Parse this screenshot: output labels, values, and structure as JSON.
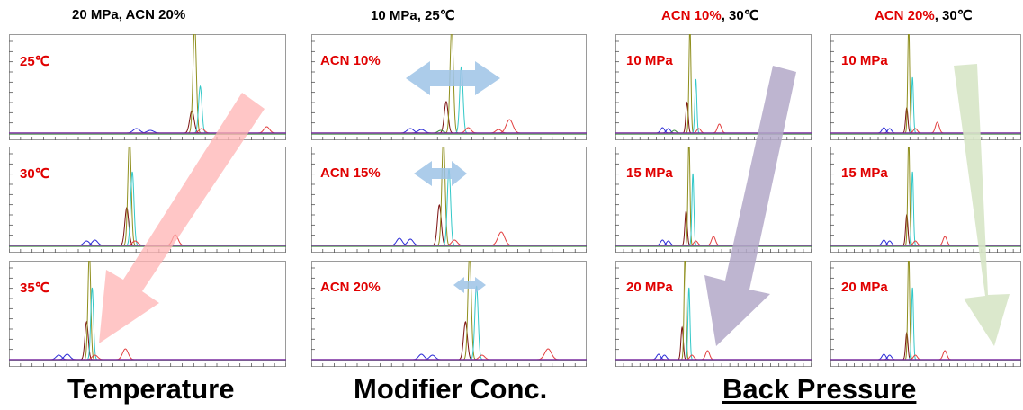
{
  "headers": [
    {
      "plain": "20 MPa, ACN 20%"
    },
    {
      "plain": "10 MPa, 25℃"
    },
    {
      "red": "ACN 10%",
      "rest": ", 30℃"
    },
    {
      "red": "ACN 20%",
      "rest": ", 30℃"
    }
  ],
  "footers": [
    "Temperature",
    "Modifier Conc.",
    "Back Pressure"
  ],
  "colors": {
    "label_red": "#e00000",
    "blue": "#2b2bd6",
    "dark_red": "#7b1010",
    "olive": "#8f8f1d",
    "cyan": "#33c8c8",
    "red": "#e24040",
    "green": "#3a8a3a",
    "baseline": "#7a2aa0",
    "arrow_temperature": "#ffb3b3",
    "arrow_modifier": "#9dc3e6",
    "arrow_pressure_10": "#b3a8c8",
    "arrow_pressure_20": "#d7e6c7"
  },
  "chart_data": [
    {
      "type": "line",
      "group": "Temperature",
      "label": "25℃",
      "peaks": [
        {
          "series": "blue",
          "x": 0.46,
          "h": 0.05,
          "w": 0.012
        },
        {
          "series": "blue",
          "x": 0.51,
          "h": 0.03,
          "w": 0.012
        },
        {
          "series": "dark_red",
          "x": 0.66,
          "h": 0.25,
          "w": 0.008
        },
        {
          "series": "olive",
          "x": 0.67,
          "h": 1.2,
          "w": 0.006
        },
        {
          "series": "cyan",
          "x": 0.69,
          "h": 0.52,
          "w": 0.006
        },
        {
          "series": "red",
          "x": 0.695,
          "h": 0.05,
          "w": 0.01
        },
        {
          "series": "red",
          "x": 0.93,
          "h": 0.07,
          "w": 0.01
        }
      ]
    },
    {
      "type": "line",
      "group": "Temperature",
      "label": "30℃",
      "peaks": [
        {
          "series": "blue",
          "x": 0.28,
          "h": 0.05,
          "w": 0.01
        },
        {
          "series": "blue",
          "x": 0.31,
          "h": 0.06,
          "w": 0.01
        },
        {
          "series": "dark_red",
          "x": 0.425,
          "h": 0.42,
          "w": 0.007
        },
        {
          "series": "olive",
          "x": 0.435,
          "h": 1.2,
          "w": 0.006
        },
        {
          "series": "cyan",
          "x": 0.445,
          "h": 0.82,
          "w": 0.006
        },
        {
          "series": "red",
          "x": 0.455,
          "h": 0.05,
          "w": 0.01
        },
        {
          "series": "red",
          "x": 0.6,
          "h": 0.12,
          "w": 0.01
        }
      ]
    },
    {
      "type": "line",
      "group": "Temperature",
      "label": "35℃",
      "peaks": [
        {
          "series": "blue",
          "x": 0.18,
          "h": 0.05,
          "w": 0.01
        },
        {
          "series": "blue",
          "x": 0.21,
          "h": 0.06,
          "w": 0.01
        },
        {
          "series": "dark_red",
          "x": 0.28,
          "h": 0.42,
          "w": 0.006
        },
        {
          "series": "olive",
          "x": 0.29,
          "h": 1.2,
          "w": 0.005
        },
        {
          "series": "cyan",
          "x": 0.3,
          "h": 0.8,
          "w": 0.005
        },
        {
          "series": "red",
          "x": 0.31,
          "h": 0.05,
          "w": 0.01
        },
        {
          "series": "red",
          "x": 0.42,
          "h": 0.12,
          "w": 0.01
        }
      ]
    },
    {
      "type": "line",
      "group": "Modifier Conc.",
      "label": "ACN 10%",
      "peaks": [
        {
          "series": "blue",
          "x": 0.36,
          "h": 0.05,
          "w": 0.012
        },
        {
          "series": "blue",
          "x": 0.4,
          "h": 0.04,
          "w": 0.012
        },
        {
          "series": "dark_red",
          "x": 0.49,
          "h": 0.35,
          "w": 0.007
        },
        {
          "series": "olive",
          "x": 0.51,
          "h": 1.2,
          "w": 0.006
        },
        {
          "series": "cyan",
          "x": 0.545,
          "h": 0.74,
          "w": 0.006
        },
        {
          "series": "red",
          "x": 0.57,
          "h": 0.06,
          "w": 0.01
        },
        {
          "series": "red",
          "x": 0.72,
          "h": 0.15,
          "w": 0.012
        },
        {
          "series": "red",
          "x": 0.68,
          "h": 0.04,
          "w": 0.01
        },
        {
          "series": "green",
          "x": 0.47,
          "h": 0.03,
          "w": 0.01
        }
      ]
    },
    {
      "type": "line",
      "group": "Modifier Conc.",
      "label": "ACN 15%",
      "peaks": [
        {
          "series": "blue",
          "x": 0.32,
          "h": 0.08,
          "w": 0.01
        },
        {
          "series": "blue",
          "x": 0.36,
          "h": 0.07,
          "w": 0.01
        },
        {
          "series": "dark_red",
          "x": 0.465,
          "h": 0.45,
          "w": 0.007
        },
        {
          "series": "olive",
          "x": 0.48,
          "h": 1.2,
          "w": 0.006
        },
        {
          "series": "cyan",
          "x": 0.5,
          "h": 0.85,
          "w": 0.006
        },
        {
          "series": "red",
          "x": 0.52,
          "h": 0.06,
          "w": 0.01
        },
        {
          "series": "red",
          "x": 0.69,
          "h": 0.15,
          "w": 0.012
        }
      ]
    },
    {
      "type": "line",
      "group": "Modifier Conc.",
      "label": "ACN 20%",
      "peaks": [
        {
          "series": "blue",
          "x": 0.4,
          "h": 0.06,
          "w": 0.01
        },
        {
          "series": "blue",
          "x": 0.44,
          "h": 0.05,
          "w": 0.01
        },
        {
          "series": "dark_red",
          "x": 0.56,
          "h": 0.42,
          "w": 0.007
        },
        {
          "series": "olive",
          "x": 0.575,
          "h": 1.2,
          "w": 0.006
        },
        {
          "series": "cyan",
          "x": 0.6,
          "h": 0.82,
          "w": 0.006
        },
        {
          "series": "red",
          "x": 0.62,
          "h": 0.05,
          "w": 0.01
        },
        {
          "series": "red",
          "x": 0.86,
          "h": 0.12,
          "w": 0.012
        }
      ]
    },
    {
      "type": "line",
      "group": "Back Pressure",
      "label": "10 MPa",
      "peaks": [
        {
          "series": "blue",
          "x": 0.24,
          "h": 0.06,
          "w": 0.01
        },
        {
          "series": "blue",
          "x": 0.27,
          "h": 0.05,
          "w": 0.01
        },
        {
          "series": "dark_red",
          "x": 0.365,
          "h": 0.34,
          "w": 0.006
        },
        {
          "series": "olive",
          "x": 0.38,
          "h": 1.2,
          "w": 0.005
        },
        {
          "series": "cyan",
          "x": 0.41,
          "h": 0.6,
          "w": 0.005
        },
        {
          "series": "red",
          "x": 0.425,
          "h": 0.05,
          "w": 0.01
        },
        {
          "series": "red",
          "x": 0.53,
          "h": 0.1,
          "w": 0.01
        },
        {
          "series": "green",
          "x": 0.3,
          "h": 0.03,
          "w": 0.01
        }
      ]
    },
    {
      "type": "line",
      "group": "Back Pressure",
      "label": "15 MPa",
      "peaks": [
        {
          "series": "blue",
          "x": 0.24,
          "h": 0.06,
          "w": 0.01
        },
        {
          "series": "blue",
          "x": 0.27,
          "h": 0.05,
          "w": 0.01
        },
        {
          "series": "dark_red",
          "x": 0.36,
          "h": 0.38,
          "w": 0.006
        },
        {
          "series": "olive",
          "x": 0.375,
          "h": 1.2,
          "w": 0.005
        },
        {
          "series": "cyan",
          "x": 0.395,
          "h": 0.8,
          "w": 0.005
        },
        {
          "series": "red",
          "x": 0.41,
          "h": 0.05,
          "w": 0.01
        },
        {
          "series": "red",
          "x": 0.5,
          "h": 0.1,
          "w": 0.01
        }
      ]
    },
    {
      "type": "line",
      "group": "Back Pressure",
      "label": "20 MPa",
      "peaks": [
        {
          "series": "blue",
          "x": 0.22,
          "h": 0.06,
          "w": 0.01
        },
        {
          "series": "blue",
          "x": 0.25,
          "h": 0.05,
          "w": 0.01
        },
        {
          "series": "dark_red",
          "x": 0.34,
          "h": 0.36,
          "w": 0.006
        },
        {
          "series": "olive",
          "x": 0.355,
          "h": 1.2,
          "w": 0.005
        },
        {
          "series": "cyan",
          "x": 0.375,
          "h": 0.8,
          "w": 0.005
        },
        {
          "series": "red",
          "x": 0.39,
          "h": 0.05,
          "w": 0.01
        },
        {
          "series": "red",
          "x": 0.47,
          "h": 0.1,
          "w": 0.01
        }
      ]
    },
    {
      "type": "line",
      "group": "Back Pressure",
      "label": "10 MPa",
      "peaks": [
        {
          "series": "blue",
          "x": 0.28,
          "h": 0.06,
          "w": 0.01
        },
        {
          "series": "blue",
          "x": 0.31,
          "h": 0.05,
          "w": 0.01
        },
        {
          "series": "dark_red",
          "x": 0.4,
          "h": 0.28,
          "w": 0.006
        },
        {
          "series": "olive",
          "x": 0.41,
          "h": 1.2,
          "w": 0.005
        },
        {
          "series": "cyan",
          "x": 0.43,
          "h": 0.62,
          "w": 0.005
        },
        {
          "series": "red",
          "x": 0.445,
          "h": 0.05,
          "w": 0.01
        },
        {
          "series": "red",
          "x": 0.56,
          "h": 0.12,
          "w": 0.01
        }
      ]
    },
    {
      "type": "line",
      "group": "Back Pressure",
      "label": "15 MPa",
      "peaks": [
        {
          "series": "blue",
          "x": 0.28,
          "h": 0.06,
          "w": 0.01
        },
        {
          "series": "blue",
          "x": 0.31,
          "h": 0.05,
          "w": 0.01
        },
        {
          "series": "dark_red",
          "x": 0.4,
          "h": 0.34,
          "w": 0.006
        },
        {
          "series": "olive",
          "x": 0.41,
          "h": 1.2,
          "w": 0.005
        },
        {
          "series": "cyan",
          "x": 0.43,
          "h": 0.82,
          "w": 0.005
        },
        {
          "series": "red",
          "x": 0.445,
          "h": 0.05,
          "w": 0.01
        },
        {
          "series": "red",
          "x": 0.6,
          "h": 0.1,
          "w": 0.01
        }
      ]
    },
    {
      "type": "line",
      "group": "Back Pressure",
      "label": "20 MPa",
      "peaks": [
        {
          "series": "blue",
          "x": 0.28,
          "h": 0.06,
          "w": 0.01
        },
        {
          "series": "blue",
          "x": 0.31,
          "h": 0.05,
          "w": 0.01
        },
        {
          "series": "dark_red",
          "x": 0.4,
          "h": 0.3,
          "w": 0.006
        },
        {
          "series": "olive",
          "x": 0.41,
          "h": 1.2,
          "w": 0.005
        },
        {
          "series": "cyan",
          "x": 0.43,
          "h": 0.8,
          "w": 0.005
        },
        {
          "series": "red",
          "x": 0.445,
          "h": 0.05,
          "w": 0.01
        },
        {
          "series": "red",
          "x": 0.6,
          "h": 0.1,
          "w": 0.01
        }
      ]
    }
  ]
}
